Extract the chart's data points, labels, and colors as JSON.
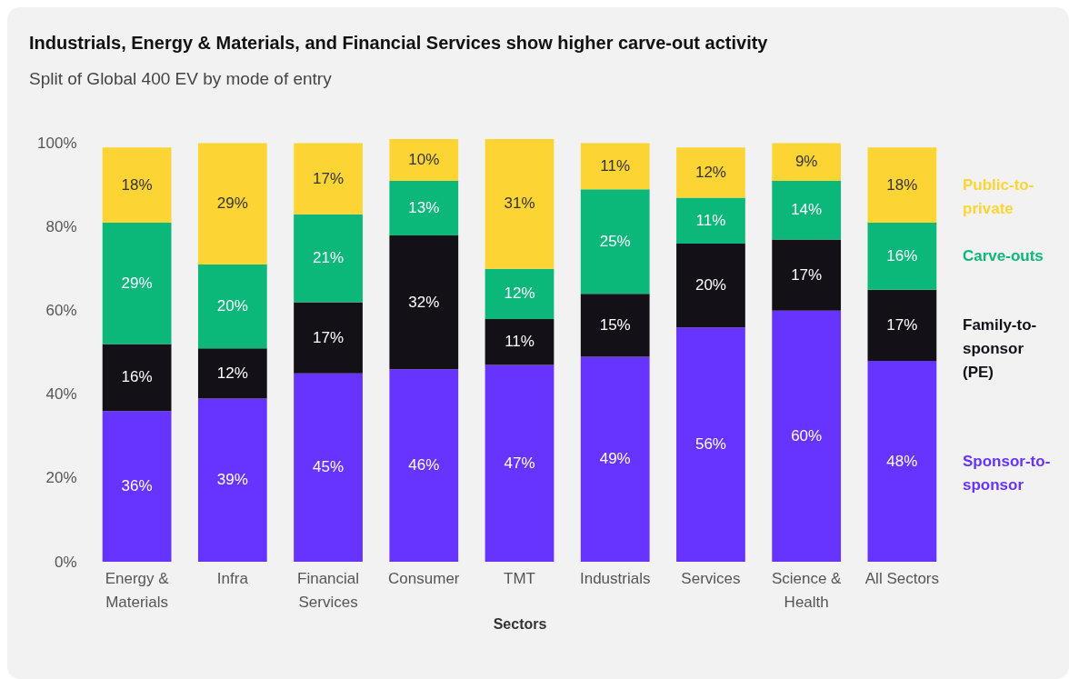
{
  "chart_data": {
    "type": "bar",
    "title": "Industrials, Energy & Materials, and Financial Services show higher carve-out activity",
    "subtitle": "Split of Global 400 EV by mode of entry",
    "xlabel": "Sectors",
    "stacked": true,
    "legend": "right",
    "grid": false,
    "categories": [
      "Energy & Materials",
      "Infra",
      "Financial Services",
      "Consumer",
      "TMT",
      "Industrials",
      "Services",
      "Science & Health",
      "All Sectors"
    ],
    "ylim": [
      0,
      101
    ],
    "yticks": [
      {
        "value": 0,
        "label": "0%"
      },
      {
        "value": 20,
        "label": "20%"
      },
      {
        "value": 40,
        "label": "40%"
      },
      {
        "value": 60,
        "label": "60%"
      },
      {
        "value": 80,
        "label": "80%"
      },
      {
        "value": 100,
        "label": "100%"
      }
    ],
    "series": [
      {
        "name": "Sponsor-to-sponsor",
        "color": "#6633ff",
        "values": [
          36,
          39,
          45,
          46,
          47,
          49,
          56,
          60,
          48
        ],
        "value_labels": [
          "36%",
          "39%",
          "45%",
          "46%",
          "47%",
          "49%",
          "56%",
          "60%",
          "48%"
        ]
      },
      {
        "name": "Family-to-sponsor (PE)",
        "color": "#141018",
        "values": [
          16,
          12,
          17,
          32,
          11,
          15,
          20,
          17,
          17
        ],
        "value_labels": [
          "16%",
          "12%",
          "17%",
          "32%",
          "11%",
          "15%",
          "20%",
          "17%",
          "17%"
        ]
      },
      {
        "name": "Carve-outs",
        "color": "#0bb87a",
        "values": [
          29,
          20,
          21,
          13,
          12,
          25,
          11,
          14,
          16
        ],
        "value_labels": [
          "29%",
          "20%",
          "21%",
          "13%",
          "12%",
          "25%",
          "11%",
          "14%",
          "16%"
        ]
      },
      {
        "name": "Public-to-private",
        "color": "#fcd535",
        "values": [
          18,
          29,
          17,
          10,
          31,
          11,
          12,
          9,
          18
        ],
        "value_labels": [
          "18%",
          "29%",
          "17%",
          "10%",
          "31%",
          "11%",
          "12%",
          "9%",
          "18%"
        ]
      }
    ]
  }
}
